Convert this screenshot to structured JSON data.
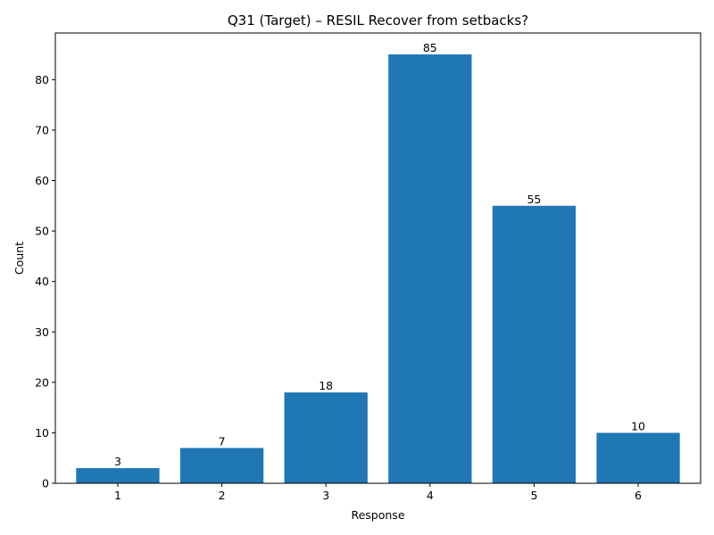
{
  "chart_data": {
    "type": "bar",
    "title": "Q31 (Target) – RESIL Recover from setbacks?",
    "xlabel": "Response",
    "ylabel": "Count",
    "categories": [
      "1",
      "2",
      "3",
      "4",
      "5",
      "6"
    ],
    "values": [
      3,
      7,
      18,
      85,
      55,
      10
    ],
    "ylim": [
      0,
      89.25
    ],
    "yticks": [
      0,
      10,
      20,
      30,
      40,
      50,
      60,
      70,
      80
    ],
    "grid": false,
    "bar_color": "#1f77b4"
  }
}
